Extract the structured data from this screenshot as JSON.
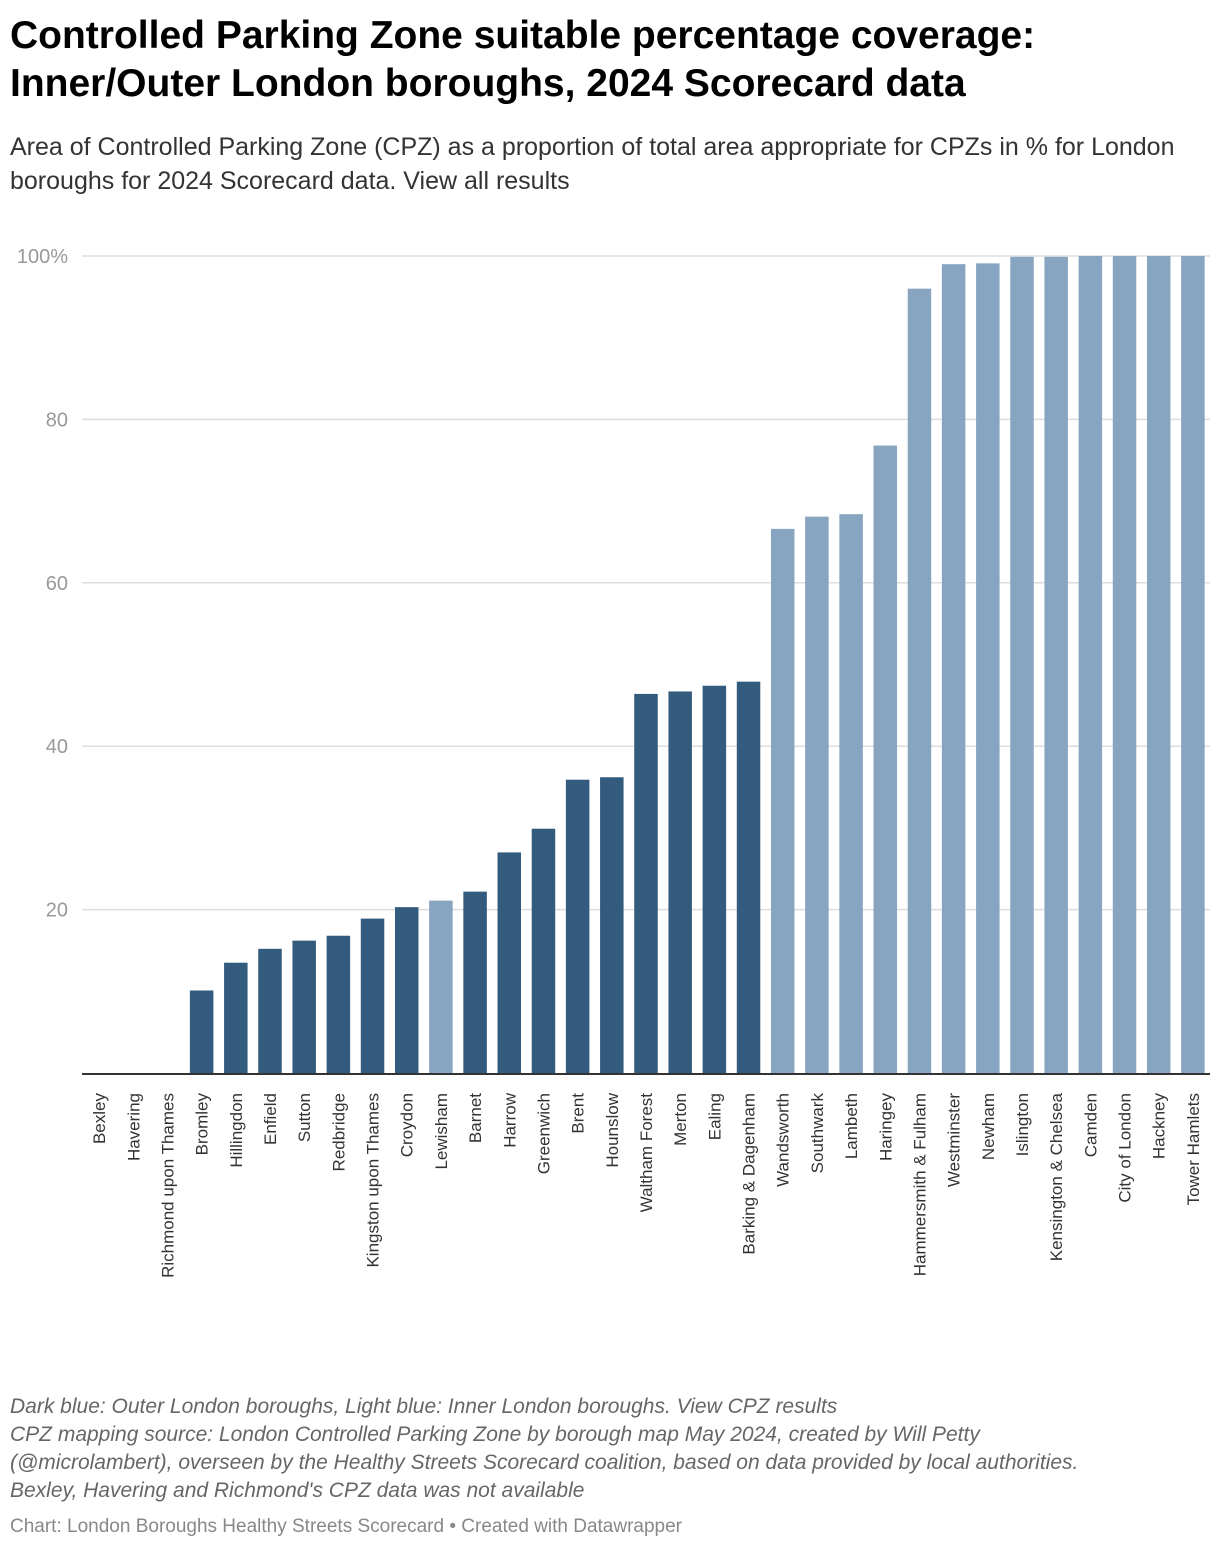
{
  "title_line1": "Controlled Parking Zone suitable percentage coverage:",
  "title_line2": "Inner/Outer London boroughs, 2024 Scorecard data",
  "subtitle": "Area of Controlled Parking Zone (CPZ) as a proportion of total area appropriate for CPZs in % for London boroughs for 2024 Scorecard data. View all results",
  "notes": {
    "line1": "Dark blue: Outer London boroughs, Light blue: Inner London boroughs. View CPZ results",
    "line2": "CPZ mapping source: London Controlled Parking Zone by borough map May 2024, created by Will Petty",
    "line3": "(@microlambert), overseen by the Healthy Streets Scorecard coalition, based on data provided by local authorities.",
    "line4": "Bexley, Havering and Richmond's CPZ data was not available"
  },
  "credit": "Chart: London Boroughs Healthy Streets Scorecard • Created with Datawrapper",
  "colors": {
    "outer": "#335b7d",
    "inner": "#87a5c0",
    "grid": "#dddddd",
    "axis": "#333333",
    "tick_text": "#999999"
  },
  "chart_data": {
    "type": "bar",
    "title": "Controlled Parking Zone suitable percentage coverage: Inner/Outer London boroughs, 2024 Scorecard data",
    "xlabel": "",
    "ylabel": "",
    "ylim": [
      0,
      100
    ],
    "yticks": [
      20,
      40,
      60,
      80,
      100
    ],
    "ytick_labels": [
      "20",
      "40",
      "60",
      "80",
      "100%"
    ],
    "grid": true,
    "categories": [
      "Bexley",
      "Havering",
      "Richmond upon Thames",
      "Bromley",
      "Hillingdon",
      "Enfield",
      "Sutton",
      "Redbridge",
      "Kingston upon Thames",
      "Croydon",
      "Lewisham",
      "Barnet",
      "Harrow",
      "Greenwich",
      "Brent",
      "Hounslow",
      "Waltham Forest",
      "Merton",
      "Ealing",
      "Barking & Dagenham",
      "Wandsworth",
      "Southwark",
      "Lambeth",
      "Haringey",
      "Hammersmith & Fulham",
      "Westminster",
      "Newham",
      "Islington",
      "Kensington & Chelsea",
      "Camden",
      "City of London",
      "Hackney",
      "Tower Hamlets"
    ],
    "values": [
      null,
      null,
      null,
      10.1,
      13.5,
      15.2,
      16.2,
      16.8,
      18.9,
      20.3,
      21.1,
      22.2,
      27.0,
      29.9,
      35.9,
      36.2,
      46.4,
      46.7,
      47.4,
      47.9,
      66.6,
      68.1,
      68.4,
      76.8,
      96.0,
      99.0,
      99.1,
      99.9,
      99.9,
      100,
      100,
      100,
      100
    ],
    "groups": [
      "outer",
      "outer",
      "outer",
      "outer",
      "outer",
      "outer",
      "outer",
      "outer",
      "outer",
      "outer",
      "inner",
      "outer",
      "outer",
      "outer",
      "outer",
      "outer",
      "outer",
      "outer",
      "outer",
      "outer",
      "inner",
      "inner",
      "inner",
      "inner",
      "inner",
      "inner",
      "inner",
      "inner",
      "inner",
      "inner",
      "inner",
      "inner",
      "inner"
    ]
  }
}
